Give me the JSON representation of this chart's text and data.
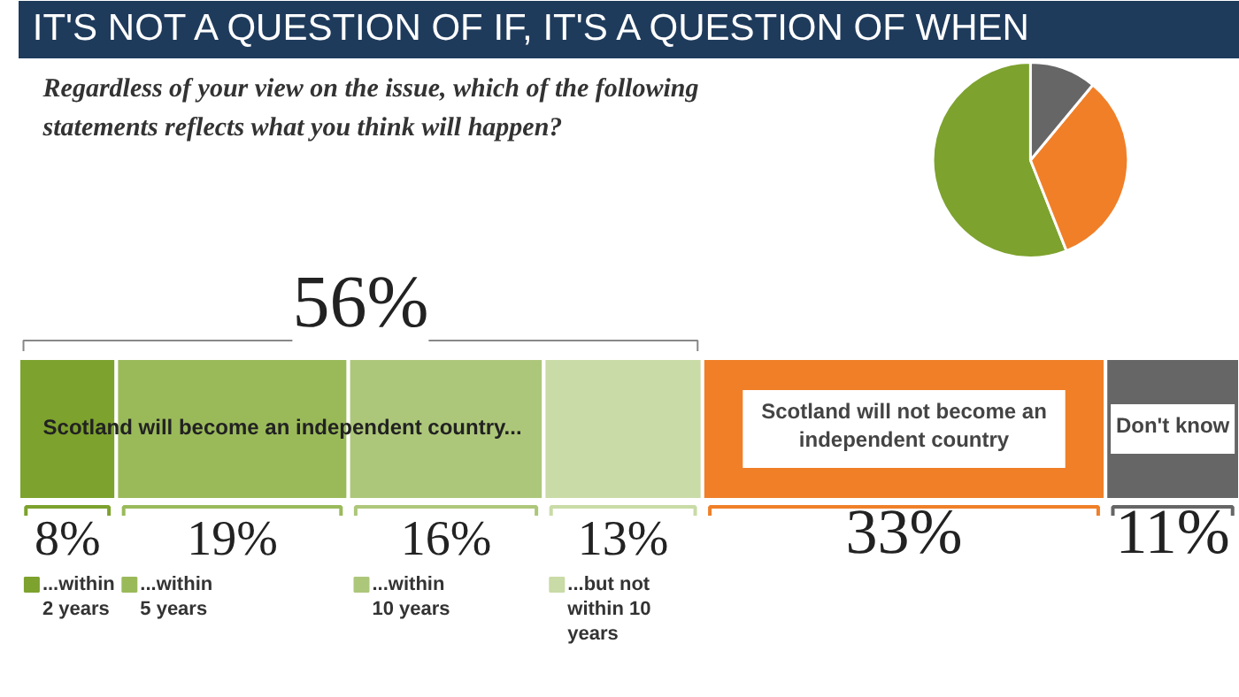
{
  "chart_data": [
    {
      "type": "pie",
      "title": "IT'S NOT A QUESTION OF IF, IT'S A QUESTION OF WHEN",
      "subtitle": "Regardless of your view on the issue, which of the following statements reflects what you think will happen?",
      "categories": [
        null,
        null,
        null
      ],
      "values": [
        56,
        33,
        11
      ],
      "colors": [
        "#7da22e",
        "#f07f28",
        "#666666"
      ]
    },
    {
      "type": "bar",
      "orientation": "horizontal",
      "stacked": true,
      "categories": [
        null
      ],
      "xlim": [
        0,
        100
      ],
      "tick_labels": false,
      "grid": false,
      "legend": "bottom",
      "annotations": [
        "56%",
        "Scotland will become an independent country..."
      ],
      "series": [
        {
          "name": "...within 2 years",
          "color": "#7da22e",
          "values": [
            8
          ],
          "value_labels": [
            "8%"
          ]
        },
        {
          "name": "...within 5 years",
          "color": "#9aba5a",
          "values": [
            19
          ],
          "value_labels": [
            "19%"
          ]
        },
        {
          "name": "...within 10 years",
          "color": "#adc77a",
          "values": [
            16
          ],
          "value_labels": [
            "16%"
          ]
        },
        {
          "name": "...but not within 10 years",
          "color": "#c9dba6",
          "values": [
            13
          ],
          "value_labels": [
            "13%"
          ]
        },
        {
          "name": "Scotland will not become an independent country",
          "color": "#f07f28",
          "values": [
            33
          ],
          "value_labels": [
            "33%"
          ]
        },
        {
          "name": "Don't know",
          "color": "#666666",
          "values": [
            11
          ],
          "value_labels": [
            "11%"
          ]
        }
      ]
    }
  ]
}
